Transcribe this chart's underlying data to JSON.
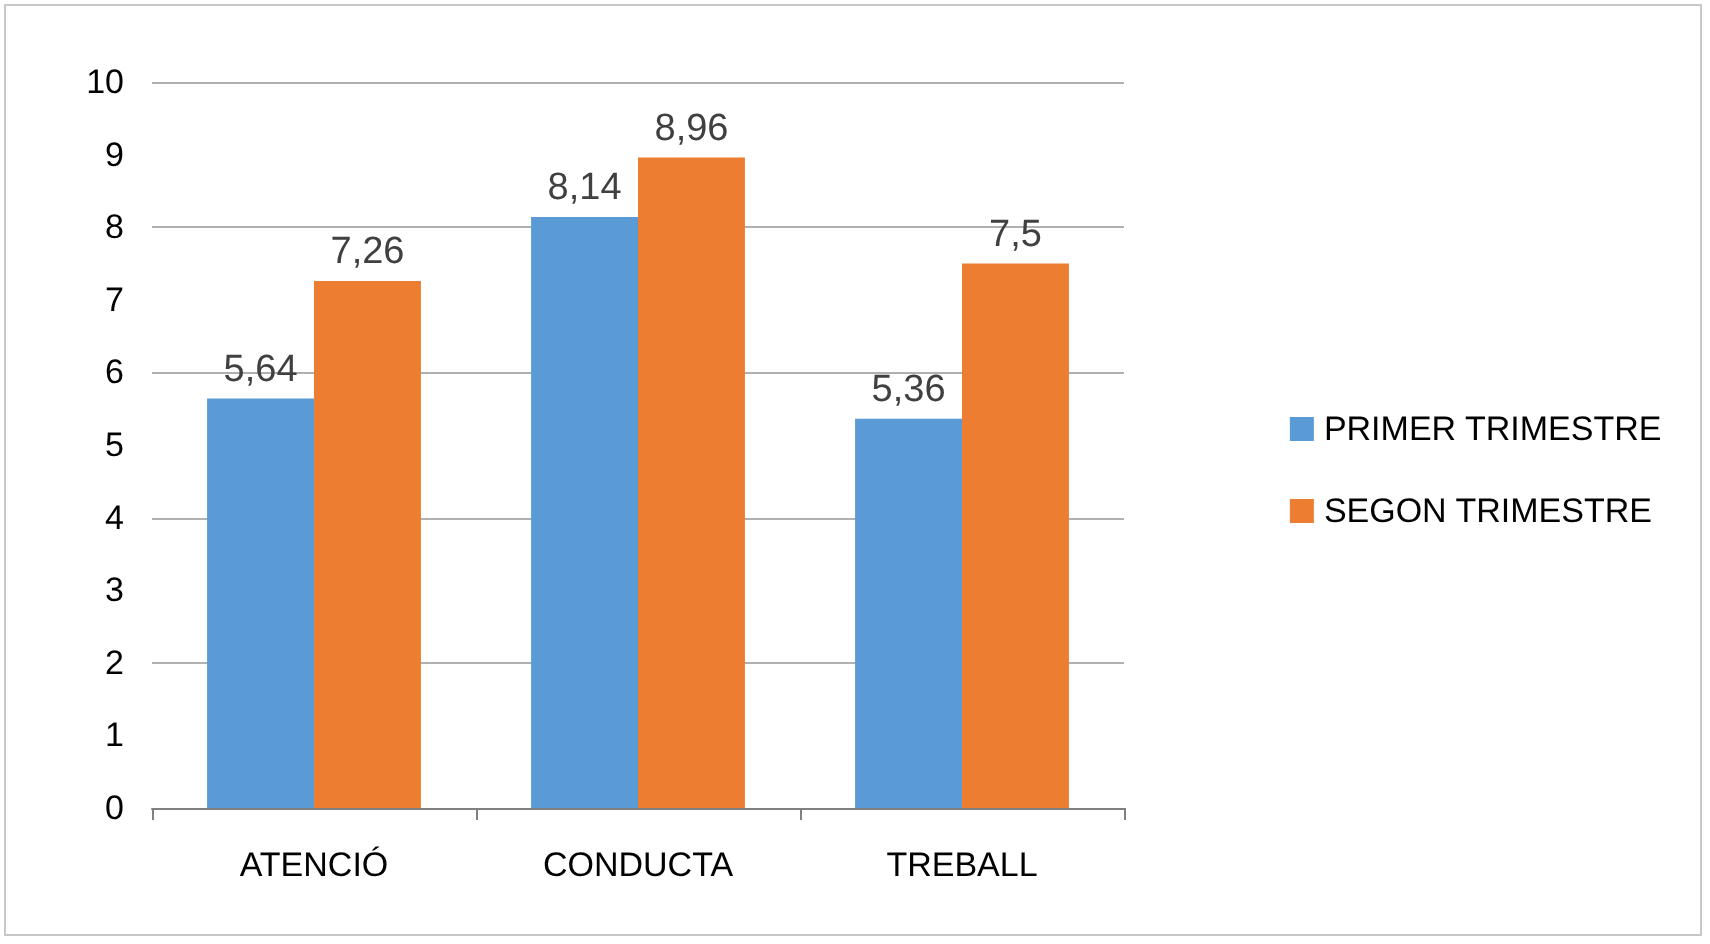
{
  "chart_data": {
    "type": "bar",
    "categories": [
      "ATENCIÓ",
      "CONDUCTA",
      "TREBALL"
    ],
    "series": [
      {
        "name": "PRIMER TRIMESTRE",
        "color": "#5b9bd5",
        "values": [
          5.64,
          8.14,
          5.36
        ],
        "value_labels": [
          "5,64",
          "8,14",
          "5,36"
        ]
      },
      {
        "name": "SEGON TRIMESTRE",
        "color": "#ed7d31",
        "values": [
          7.26,
          8.96,
          7.5
        ],
        "value_labels": [
          "7,26",
          "8,96",
          "7,5"
        ]
      }
    ],
    "ylim": [
      0,
      10
    ],
    "yticks": [
      0,
      1,
      2,
      3,
      4,
      5,
      6,
      7,
      8,
      9,
      10
    ],
    "grid": "y",
    "legend": "right"
  }
}
